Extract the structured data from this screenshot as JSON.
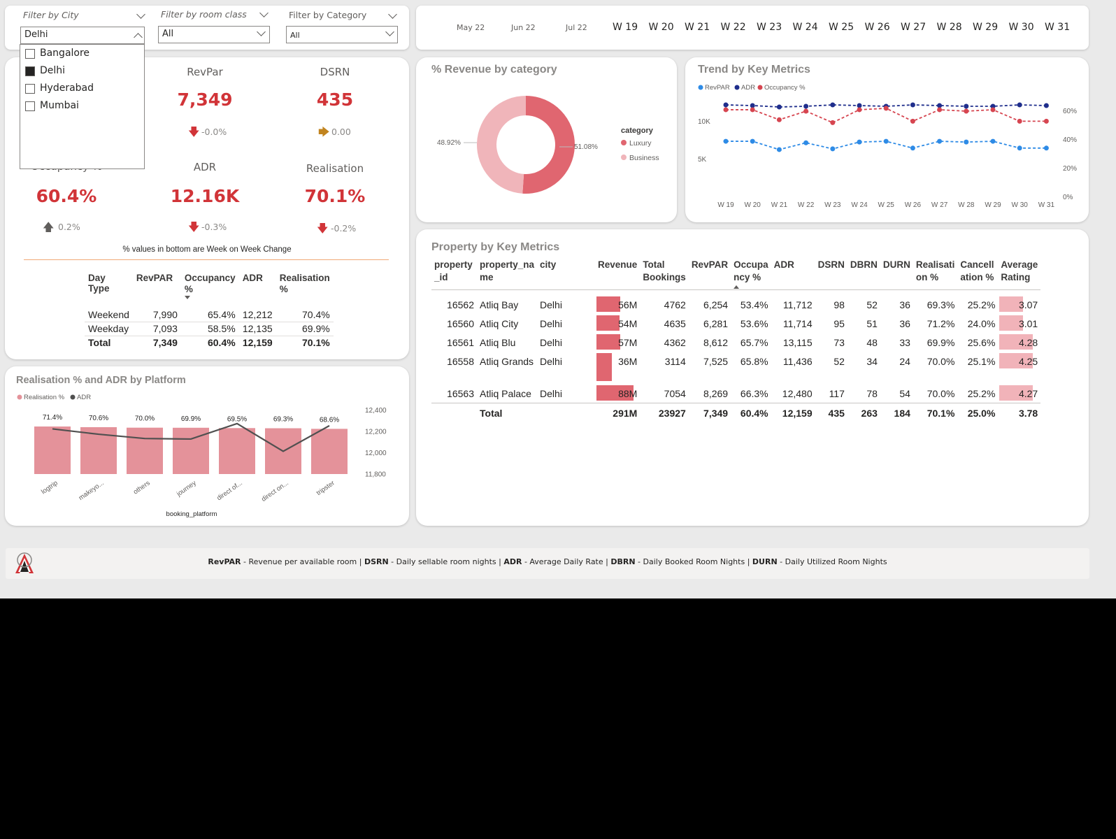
{
  "filters": {
    "city": {
      "title": "Filter by City",
      "value": "Delhi",
      "options": [
        {
          "label": "Bangalore",
          "checked": false
        },
        {
          "label": "Delhi",
          "checked": true
        },
        {
          "label": "Hyderabad",
          "checked": false
        },
        {
          "label": "Mumbai",
          "checked": false
        }
      ]
    },
    "room_class": {
      "title": "Filter by room class",
      "value": "All"
    },
    "category": {
      "title": "Filter by Category",
      "value": "All"
    }
  },
  "timeline": {
    "months": [
      "May 22",
      "Jun 22",
      "Jul 22"
    ],
    "weeks": [
      "W 19",
      "W 20",
      "W 21",
      "W 22",
      "W 23",
      "W 24",
      "W 25",
      "W 26",
      "W 27",
      "W 28",
      "W 29",
      "W 30",
      "W 31"
    ]
  },
  "kpis": {
    "revpar": {
      "label": "RevPar",
      "value": "7,349",
      "change": "-0.0%"
    },
    "dsrn": {
      "label": "DSRN",
      "value": "435",
      "change": "0.00"
    },
    "occupancy": {
      "label": "Occupancy %",
      "value": "60.4%",
      "change": "0.2%"
    },
    "adr": {
      "label": "ADR",
      "value": "12.16K",
      "change": "-0.3%"
    },
    "realisation": {
      "label": "Realisation",
      "value": "70.1%",
      "change": "-0.2%"
    },
    "note": "% values in bottom are Week on Week Change"
  },
  "daytype_table": {
    "headers": [
      "Day Type",
      "RevPAR",
      "Occupancy %",
      "ADR",
      "Realisation %"
    ],
    "rows": [
      [
        "Weekend",
        "7,990",
        "65.4%",
        "12,212",
        "70.4%"
      ],
      [
        "Weekday",
        "7,093",
        "58.5%",
        "12,135",
        "69.9%"
      ]
    ],
    "total": [
      "Total",
      "7,349",
      "60.4%",
      "12,159",
      "70.1%"
    ]
  },
  "revenue_by_category": {
    "title": "% Revenue by category",
    "legend_title": "category",
    "luxury_label": "Luxury",
    "business_label": "Business",
    "luxury_pct_label": "51.08%",
    "business_pct_label": "48.92%",
    "colors": {
      "luxury": "#e06670",
      "business": "#f0b5ba"
    }
  },
  "trend": {
    "title": "Trend by Key Metrics",
    "legend": [
      "RevPAR",
      "ADR",
      "Occupancy %"
    ],
    "left_ticks": [
      "10K",
      "5K"
    ],
    "right_ticks": [
      "60%",
      "40%",
      "20%",
      "0%"
    ],
    "colors": {
      "revpar": "#2e8be6",
      "adr": "#1f2e8c",
      "occupancy": "#d64550"
    }
  },
  "platform": {
    "title": "Realisation % and ADR by Platform",
    "legend": [
      "Realisation %",
      "ADR"
    ],
    "xlabel": "booking_platform",
    "right_ticks": [
      "12,400",
      "12,200",
      "12,000",
      "11,800"
    ],
    "bar_color": "#e4929a"
  },
  "property": {
    "title": "Property by Key Metrics",
    "headers": [
      "property _id",
      "property_na me",
      "city",
      "Revenue",
      "Total Bookings",
      "RevPAR",
      "Occupa ncy %",
      "ADR",
      "DSRN",
      "DBRN",
      "DURN",
      "Realisati on %",
      "Cancell ation %",
      "Average Rating"
    ],
    "rows": [
      {
        "id": "16562",
        "name": "Atliq Bay",
        "city": "Delhi",
        "revenue": "56M",
        "rev_value": 56,
        "bookings": "4762",
        "revpar": "6,254",
        "occ": "53.4%",
        "adr": "11,712",
        "dsrn": "98",
        "dbrn": "52",
        "durn": "36",
        "real": "69.3%",
        "canc": "25.2%",
        "rating": "3.07",
        "rating_value": 3.07
      },
      {
        "id": "16560",
        "name": "Atliq City",
        "city": "Delhi",
        "revenue": "54M",
        "rev_value": 54,
        "bookings": "4635",
        "revpar": "6,281",
        "occ": "53.6%",
        "adr": "11,714",
        "dsrn": "95",
        "dbrn": "51",
        "durn": "36",
        "real": "71.2%",
        "canc": "24.0%",
        "rating": "3.01",
        "rating_value": 3.01
      },
      {
        "id": "16561",
        "name": "Atliq Blu",
        "city": "Delhi",
        "revenue": "57M",
        "rev_value": 57,
        "bookings": "4362",
        "revpar": "8,612",
        "occ": "65.7%",
        "adr": "13,115",
        "dsrn": "73",
        "dbrn": "48",
        "durn": "33",
        "real": "69.9%",
        "canc": "25.6%",
        "rating": "4.28",
        "rating_value": 4.28
      },
      {
        "id": "16558",
        "name": "Atliq Grands",
        "city": "Delhi",
        "revenue": "36M",
        "rev_value": 36,
        "bookings": "3114",
        "revpar": "7,525",
        "occ": "65.8%",
        "adr": "11,436",
        "dsrn": "52",
        "dbrn": "34",
        "durn": "24",
        "real": "70.0%",
        "canc": "25.1%",
        "rating": "4.25",
        "rating_value": 4.25
      },
      {
        "id": "16563",
        "name": "Atliq Palace",
        "city": "Delhi",
        "revenue": "88M",
        "rev_value": 88,
        "bookings": "7054",
        "revpar": "8,269",
        "occ": "66.3%",
        "adr": "12,480",
        "dsrn": "117",
        "dbrn": "78",
        "durn": "54",
        "real": "70.0%",
        "canc": "25.2%",
        "rating": "4.27",
        "rating_value": 4.27
      }
    ],
    "total": {
      "label": "Total",
      "revenue": "291M",
      "bookings": "23927",
      "revpar": "7,349",
      "occ": "60.4%",
      "adr": "12,159",
      "dsrn": "435",
      "dbrn": "263",
      "durn": "184",
      "real": "70.1%",
      "canc": "25.0%",
      "rating": "3.78"
    }
  },
  "footer": {
    "items": [
      {
        "abbr": "RevPAR",
        "desc": "Revenue per available room"
      },
      {
        "abbr": "DSRN",
        "desc": "Daily sellable room nights"
      },
      {
        "abbr": "ADR",
        "desc": "Average Daily Rate"
      },
      {
        "abbr": "DBRN",
        "desc": "Daily Booked Room Nights"
      },
      {
        "abbr": "DURN",
        "desc": "Daily Utilized Room Nights"
      }
    ]
  },
  "chart_data": [
    {
      "type": "pie",
      "title": "% Revenue by category",
      "categories": [
        "Luxury",
        "Business"
      ],
      "values": [
        51.08,
        48.92
      ]
    },
    {
      "type": "line",
      "title": "Trend by Key Metrics",
      "x": [
        "W 19",
        "W 20",
        "W 21",
        "W 22",
        "W 23",
        "W 24",
        "W 25",
        "W 26",
        "W 27",
        "W 28",
        "W 29",
        "W 30",
        "W 31"
      ],
      "series": [
        {
          "name": "RevPAR",
          "axis": "left",
          "values": [
            7400,
            7400,
            6300,
            7200,
            6400,
            7300,
            7400,
            6500,
            7400,
            7300,
            7400,
            6500,
            6500
          ]
        },
        {
          "name": "ADR",
          "axis": "left",
          "values": [
            12400,
            12300,
            12100,
            12200,
            12400,
            12300,
            12200,
            12400,
            12300,
            12200,
            12200,
            12400,
            12300
          ]
        },
        {
          "name": "Occupancy %",
          "axis": "right",
          "values": [
            61,
            61,
            54,
            60,
            52,
            61,
            62,
            53,
            61,
            60,
            61,
            53,
            53
          ]
        }
      ],
      "ylim_left": [
        2000,
        14000
      ],
      "ylim_right": [
        0,
        72
      ]
    },
    {
      "type": "bar",
      "title": "Realisation % and ADR by Platform",
      "categories": [
        "logtrip",
        "makeyo...",
        "others",
        "journey",
        "direct of...",
        "direct on...",
        "tripster"
      ],
      "xlabel": "booking_platform",
      "series": [
        {
          "name": "Realisation %",
          "values": [
            71.4,
            70.6,
            70.0,
            69.9,
            69.5,
            69.3,
            68.6
          ],
          "labels": [
            "71.4%",
            "70.6%",
            "70.0%",
            "69.9%",
            "69.5%",
            "69.3%",
            "68.6%"
          ]
        },
        {
          "name": "ADR",
          "values": [
            12220,
            12170,
            12130,
            12125,
            12270,
            12010,
            12250
          ]
        }
      ],
      "ylim_right": [
        11800,
        12400
      ]
    }
  ]
}
